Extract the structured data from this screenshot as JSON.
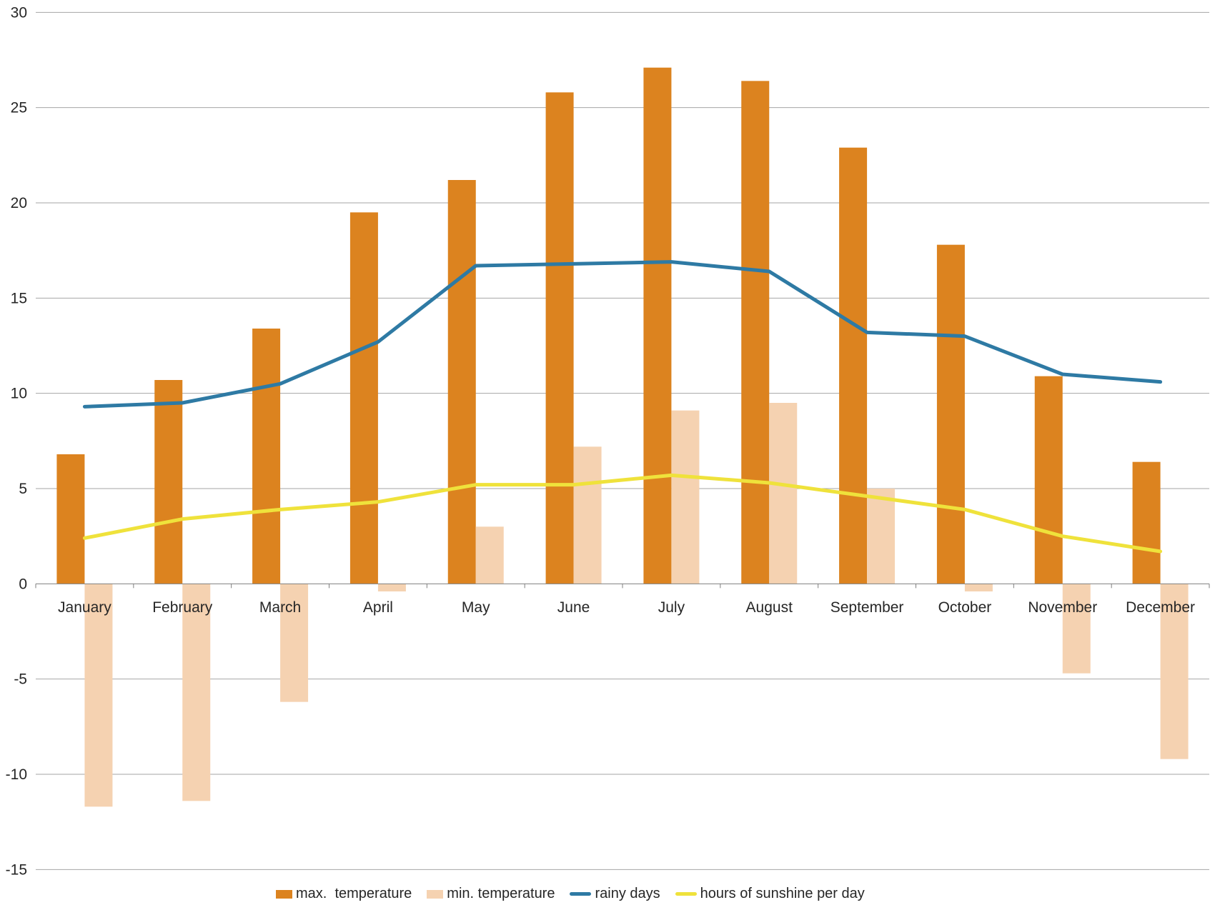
{
  "chart_data": {
    "type": "combo",
    "title": "",
    "categories": [
      "January",
      "February",
      "March",
      "April",
      "May",
      "June",
      "July",
      "August",
      "September",
      "October",
      "November",
      "December"
    ],
    "series": [
      {
        "name": "max.  temperature",
        "type": "bar",
        "color": "#DC831F",
        "values": [
          6.8,
          10.7,
          13.4,
          19.5,
          21.2,
          25.8,
          27.1,
          26.4,
          22.9,
          17.8,
          10.9,
          6.4
        ]
      },
      {
        "name": "min. temperature",
        "type": "bar",
        "color": "#F5D2B1",
        "values": [
          -11.7,
          -11.4,
          -6.2,
          -0.4,
          3.0,
          7.2,
          9.1,
          9.5,
          5.0,
          -0.4,
          -4.7,
          -9.2
        ]
      },
      {
        "name": "rainy days",
        "type": "line",
        "color": "#2E7AA4",
        "values": [
          9.3,
          9.5,
          10.5,
          12.7,
          16.7,
          16.8,
          16.9,
          16.4,
          13.2,
          13.0,
          11.0,
          10.6
        ]
      },
      {
        "name": "hours of sunshine per day",
        "type": "line",
        "color": "#EFE23B",
        "values": [
          2.4,
          3.4,
          3.9,
          4.3,
          5.2,
          5.2,
          5.7,
          5.3,
          4.6,
          3.9,
          2.5,
          1.7
        ]
      }
    ],
    "y_axis": {
      "min": -15,
      "max": 30,
      "step": 5,
      "tick_labels": [
        "30",
        "25",
        "20",
        "15",
        "10",
        "5",
        "0",
        "-5",
        "-10",
        "-15"
      ]
    },
    "grid": true,
    "legend_position": "bottom"
  },
  "colors": {
    "grid": "#A6A6A6",
    "axis": "#7F7F7F",
    "text": "#262626"
  }
}
